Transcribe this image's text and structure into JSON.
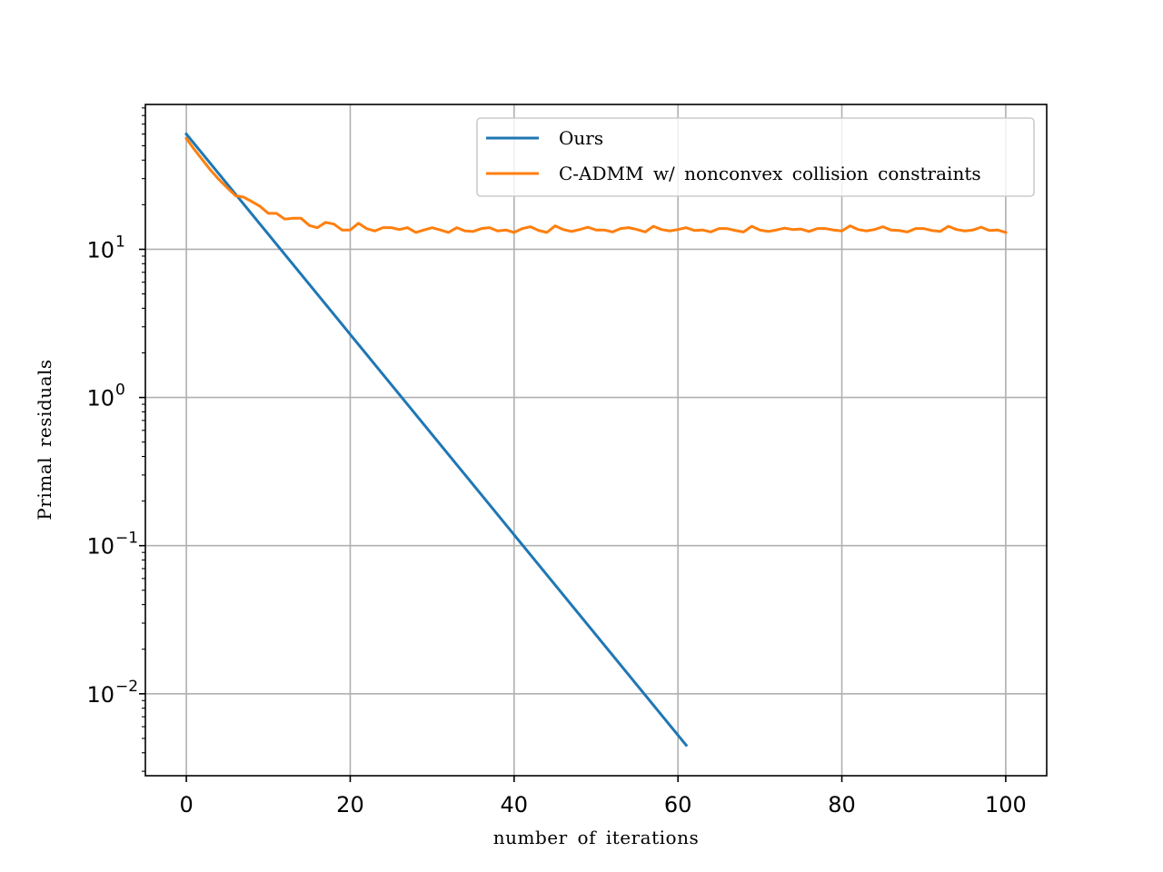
{
  "chart_data": {
    "type": "line",
    "xlabel": "number of iterations",
    "ylabel": "Primal residuals",
    "y_scale": "log",
    "xlim": [
      -5,
      105
    ],
    "ylim": [
      0.0028,
      95
    ],
    "grid": true,
    "legend_position": "top-right",
    "x_ticks": [
      0,
      20,
      40,
      60,
      80,
      100
    ],
    "y_ticks": [
      {
        "value": 0.01,
        "base": "10",
        "exp": "−2"
      },
      {
        "value": 0.1,
        "base": "10",
        "exp": "−1"
      },
      {
        "value": 1,
        "base": "10",
        "exp": "0"
      },
      {
        "value": 10,
        "base": "10",
        "exp": "1"
      }
    ],
    "series": [
      {
        "name": "Ours",
        "color": "#1f77b4",
        "x": [
          0,
          61
        ],
        "y": [
          60,
          0.0045
        ]
      },
      {
        "name": "C-ADMM w/ nonconvex collision constraints",
        "color": "#ff7f0e",
        "x": [
          0,
          1,
          2,
          3,
          4,
          5,
          6,
          7,
          8,
          9,
          10,
          11,
          12,
          13,
          14,
          15,
          16,
          17,
          18,
          19,
          20,
          21,
          22,
          23,
          24,
          25,
          26,
          27,
          28,
          29,
          30,
          31,
          32,
          33,
          34,
          35,
          36,
          37,
          38,
          39,
          40,
          41,
          42,
          43,
          44,
          45,
          46,
          47,
          48,
          49,
          50,
          51,
          52,
          53,
          54,
          55,
          56,
          57,
          58,
          59,
          60,
          61,
          62,
          63,
          64,
          65,
          66,
          67,
          68,
          69,
          70,
          71,
          72,
          73,
          74,
          75,
          76,
          77,
          78,
          79,
          80,
          81,
          82,
          83,
          84,
          85,
          86,
          87,
          88,
          89,
          90,
          91,
          92,
          93,
          94,
          95,
          96,
          97,
          98,
          99,
          100
        ],
        "y": [
          56,
          47,
          40,
          34,
          29.5,
          26,
          23,
          22.5,
          21,
          19.5,
          17.5,
          17.5,
          16,
          16.2,
          16.2,
          14.5,
          14,
          15.2,
          14.8,
          13.5,
          13.5,
          15,
          13.8,
          13.3,
          14,
          14,
          13.6,
          14,
          13,
          13.5,
          14,
          13.5,
          13,
          14,
          13.3,
          13.2,
          13.8,
          14,
          13.3,
          13.5,
          13,
          13.8,
          14.2,
          13.4,
          13,
          14.4,
          13.6,
          13.2,
          13.6,
          14.1,
          13.5,
          13.5,
          13.1,
          13.8,
          14,
          13.6,
          13.1,
          14.3,
          13.6,
          13.3,
          13.6,
          14,
          13.4,
          13.5,
          13.1,
          13.8,
          13.8,
          13.4,
          13.1,
          14.3,
          13.5,
          13.2,
          13.5,
          13.9,
          13.6,
          13.7,
          13.2,
          13.8,
          13.8,
          13.5,
          13.3,
          14.4,
          13.6,
          13.3,
          13.6,
          14.2,
          13.5,
          13.4,
          13.1,
          13.8,
          13.8,
          13.4,
          13.2,
          14.3,
          13.6,
          13.3,
          13.5,
          14.1,
          13.4,
          13.5,
          13
        ]
      }
    ]
  }
}
